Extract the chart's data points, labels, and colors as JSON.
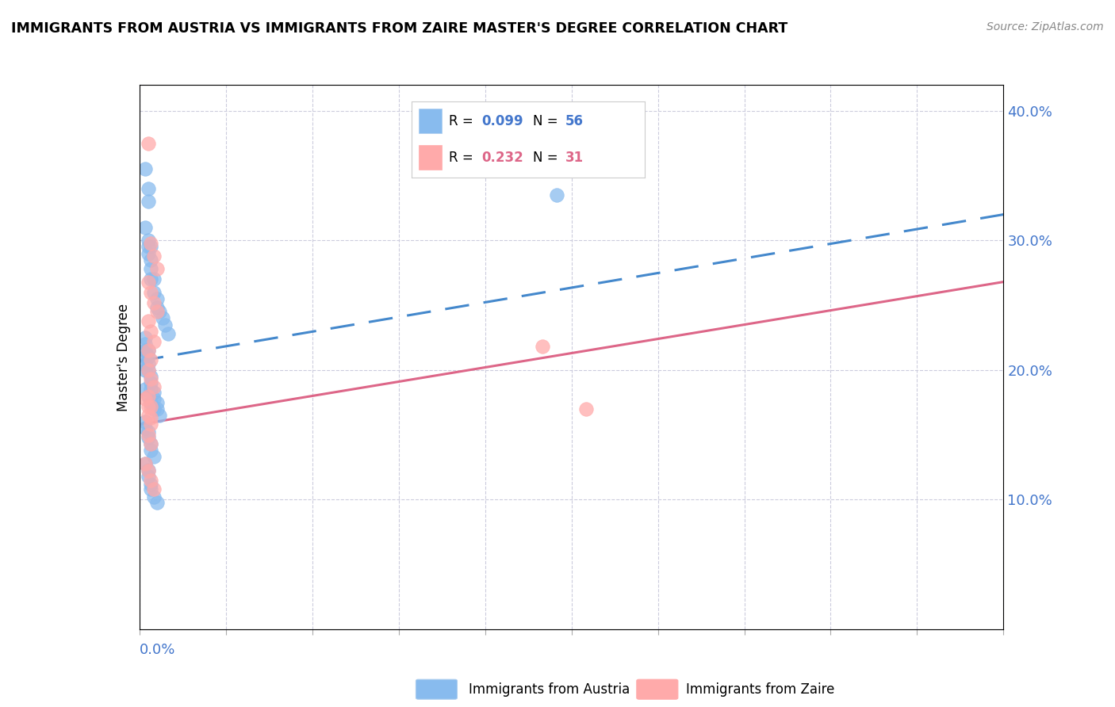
{
  "title": "IMMIGRANTS FROM AUSTRIA VS IMMIGRANTS FROM ZAIRE MASTER'S DEGREE CORRELATION CHART",
  "source": "Source: ZipAtlas.com",
  "ylabel": "Master's Degree",
  "axis_color": "#4477cc",
  "grid_color": "#ccccdd",
  "background_color": "#ffffff",
  "austria_color": "#88bbee",
  "zaire_color": "#ffaaaa",
  "austria_line_color": "#4488cc",
  "zaire_line_color": "#dd6688",
  "austria_line_style": "dashed",
  "zaire_line_style": "solid",
  "xlim": [
    0.0,
    0.3
  ],
  "ylim": [
    0.0,
    0.42
  ],
  "ytick_values": [
    0.1,
    0.2,
    0.3,
    0.4
  ],
  "legend_R_austria": "0.099",
  "legend_N_austria": "56",
  "legend_R_zaire": "0.232",
  "legend_N_zaire": "31",
  "austria_x": [
    0.002,
    0.002,
    0.003,
    0.003,
    0.003,
    0.003,
    0.003,
    0.004,
    0.004,
    0.004,
    0.004,
    0.005,
    0.005,
    0.006,
    0.006,
    0.007,
    0.008,
    0.009,
    0.01,
    0.002,
    0.002,
    0.002,
    0.002,
    0.002,
    0.002,
    0.003,
    0.003,
    0.003,
    0.003,
    0.004,
    0.004,
    0.004,
    0.005,
    0.005,
    0.006,
    0.006,
    0.007,
    0.002,
    0.002,
    0.003,
    0.003,
    0.004,
    0.004,
    0.005,
    0.002,
    0.003,
    0.003,
    0.004,
    0.004,
    0.005,
    0.006,
    0.002,
    0.003,
    0.004,
    0.005,
    0.145
  ],
  "austria_y": [
    0.355,
    0.31,
    0.34,
    0.33,
    0.3,
    0.295,
    0.29,
    0.295,
    0.285,
    0.278,
    0.27,
    0.27,
    0.26,
    0.255,
    0.248,
    0.245,
    0.24,
    0.235,
    0.228,
    0.225,
    0.22,
    0.215,
    0.21,
    0.205,
    0.2,
    0.215,
    0.21,
    0.205,
    0.2,
    0.195,
    0.19,
    0.185,
    0.183,
    0.178,
    0.175,
    0.17,
    0.165,
    0.16,
    0.155,
    0.152,
    0.148,
    0.143,
    0.138,
    0.133,
    0.128,
    0.123,
    0.118,
    0.112,
    0.108,
    0.102,
    0.098,
    0.185,
    0.18,
    0.175,
    0.17,
    0.335
  ],
  "zaire_x": [
    0.003,
    0.004,
    0.005,
    0.006,
    0.003,
    0.004,
    0.005,
    0.006,
    0.003,
    0.004,
    0.005,
    0.003,
    0.004,
    0.003,
    0.004,
    0.005,
    0.003,
    0.004,
    0.003,
    0.004,
    0.003,
    0.004,
    0.002,
    0.003,
    0.004,
    0.005,
    0.002,
    0.003,
    0.004,
    0.14,
    0.155
  ],
  "zaire_y": [
    0.375,
    0.298,
    0.288,
    0.278,
    0.268,
    0.26,
    0.252,
    0.245,
    0.238,
    0.23,
    0.222,
    0.215,
    0.208,
    0.2,
    0.193,
    0.187,
    0.18,
    0.172,
    0.165,
    0.158,
    0.15,
    0.143,
    0.128,
    0.122,
    0.115,
    0.108,
    0.178,
    0.172,
    0.163,
    0.218,
    0.17
  ]
}
